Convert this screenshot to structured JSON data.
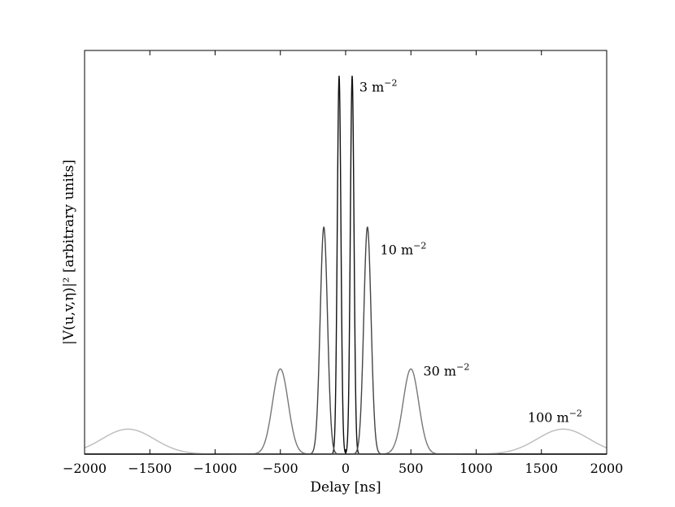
{
  "chart_data": {
    "type": "line",
    "title": "",
    "xlabel": "Delay [ns]",
    "ylabel": "|V(u,v,η)|²  [arbitrary units]",
    "xlim": [
      -2000,
      2000
    ],
    "ylim": [
      0,
      1.0
    ],
    "xticks": [
      -2000,
      -1500,
      -1000,
      -500,
      0,
      500,
      1000,
      1500,
      2000
    ],
    "xtick_labels": [
      "−2000",
      "−1500",
      "−1000",
      "−500",
      "0",
      "500",
      "1000",
      "1500",
      "2000"
    ],
    "yticks_shown": false,
    "grid": false,
    "legend": "none",
    "series": [
      {
        "peak_delays": [
          -50,
          50
        ],
        "peak_value": 1.0,
        "width_sigma": 14,
        "color": "#111111",
        "annotation": {
          "text": "3 m",
          "exponent": "−2",
          "at_delay": 105,
          "at_value": 0.975
        }
      },
      {
        "peak_delays": [
          -167,
          167
        ],
        "peak_value": 0.6,
        "width_sigma": 28,
        "color": "#444444",
        "annotation": {
          "text": "10 m",
          "exponent": "−2",
          "at_delay": 265,
          "at_value": 0.545
        }
      },
      {
        "peak_delays": [
          -500,
          500
        ],
        "peak_value": 0.225,
        "width_sigma": 60,
        "color": "#777777",
        "annotation": {
          "text": "30 m",
          "exponent": "−2",
          "at_delay": 595,
          "at_value": 0.225
        }
      },
      {
        "peak_delays": [
          -1667,
          1667
        ],
        "peak_value": 0.066,
        "width_sigma": 200,
        "color": "#bbbbbb",
        "annotation": {
          "text": "100 m",
          "exponent": "−2",
          "at_delay": 1395,
          "at_value": 0.102
        }
      }
    ]
  }
}
